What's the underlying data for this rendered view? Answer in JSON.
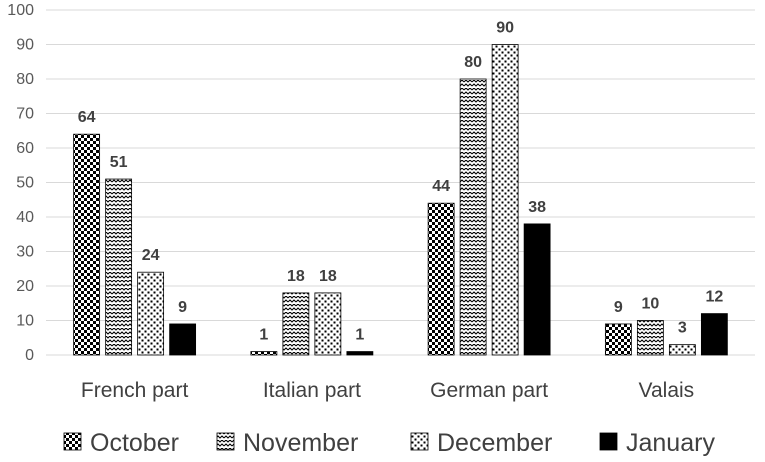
{
  "chart_data": {
    "type": "bar",
    "categories": [
      "French part",
      "Italian part",
      "German part",
      "Valais"
    ],
    "series": [
      {
        "name": "October",
        "values": [
          64,
          1,
          44,
          9
        ],
        "pattern": "checker"
      },
      {
        "name": "November",
        "values": [
          51,
          18,
          80,
          10
        ],
        "pattern": "zigzag"
      },
      {
        "name": "December",
        "values": [
          24,
          18,
          90,
          3
        ],
        "pattern": "dots"
      },
      {
        "name": "January",
        "values": [
          9,
          1,
          38,
          12
        ],
        "pattern": "solid"
      }
    ],
    "ylim": [
      0,
      100
    ],
    "yticks": [
      0,
      10,
      20,
      30,
      40,
      50,
      60,
      70,
      80,
      90,
      100
    ],
    "grid": true,
    "legend_position": "bottom",
    "data_labels": true,
    "colors": {
      "bar": "#000000",
      "grid": "#d9d9d9",
      "text": "#404040"
    }
  }
}
